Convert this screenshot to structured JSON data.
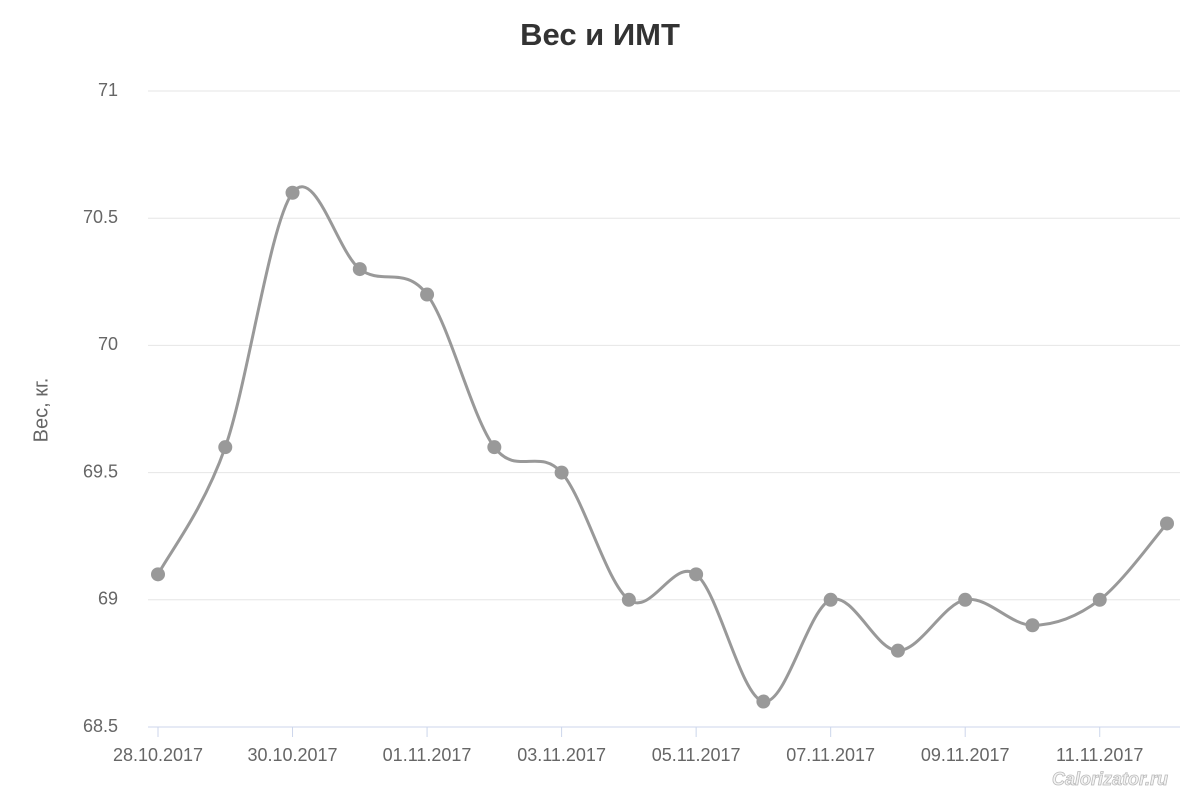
{
  "chart_data": {
    "type": "line",
    "title": "Вес и ИМТ",
    "y_label": "Вес, кг.",
    "watermark": "Calorizator.ru",
    "categories": [
      "28.10.2017",
      null,
      "30.10.2017",
      null,
      "01.11.2017",
      null,
      "03.11.2017",
      null,
      "05.11.2017",
      null,
      "07.11.2017",
      null,
      "09.11.2017",
      null,
      "11.11.2017",
      null
    ],
    "series": [
      {
        "name": "Вес",
        "color": "#999999",
        "values": [
          69.1,
          69.6,
          70.6,
          70.3,
          70.2,
          69.6,
          69.5,
          69.0,
          69.1,
          68.6,
          69.0,
          68.8,
          69.0,
          68.9,
          69.0,
          69.3
        ]
      }
    ],
    "ylim": [
      68.5,
      71
    ],
    "yticks": [
      68.5,
      69,
      69.5,
      70,
      70.5,
      71
    ],
    "grid": true,
    "smooth": true
  }
}
